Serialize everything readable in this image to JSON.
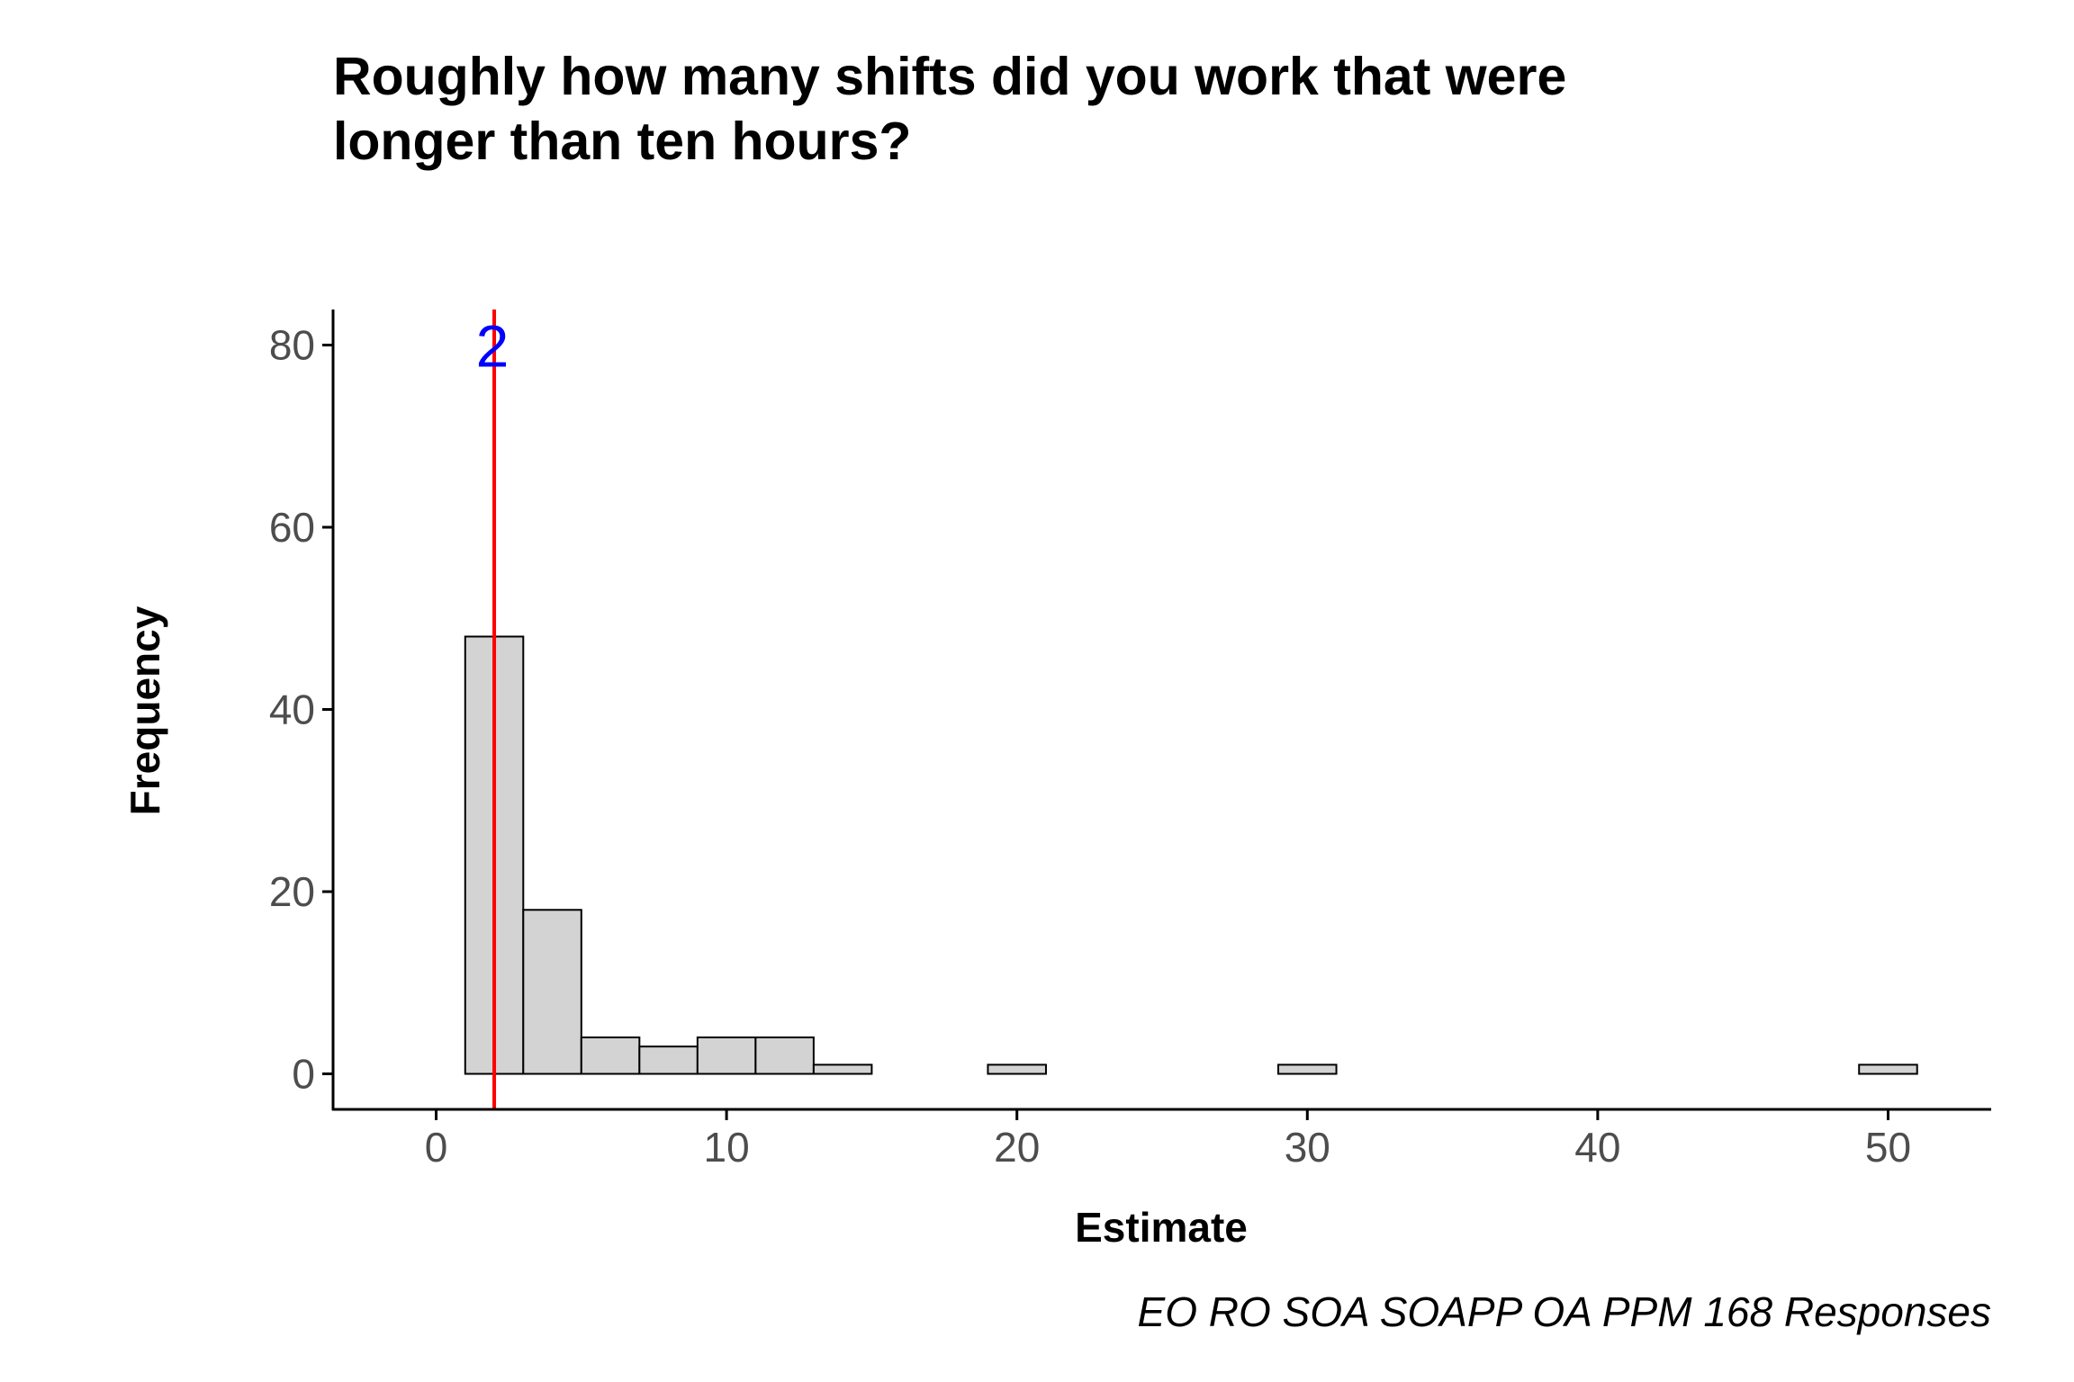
{
  "chart_data": {
    "type": "bar",
    "title_lines": [
      "Roughly how many shifts did you work that were",
      "longer than ten hours?"
    ],
    "xlabel": "Estimate",
    "ylabel": "Frequency",
    "caption": "EO RO SOA SOAPP OA PPM 168 Responses",
    "xlim": [
      -3.55,
      53.55
    ],
    "ylim": [
      -3.9,
      83.9
    ],
    "x_ticks": [
      0,
      10,
      20,
      30,
      40,
      50
    ],
    "y_ticks": [
      0,
      20,
      40,
      60,
      80
    ],
    "bin_width": 2,
    "bins": [
      {
        "x_start": 1,
        "x_end": 3,
        "count": 48
      },
      {
        "x_start": 3,
        "x_end": 5,
        "count": 18
      },
      {
        "x_start": 5,
        "x_end": 7,
        "count": 4
      },
      {
        "x_start": 7,
        "x_end": 9,
        "count": 3
      },
      {
        "x_start": 9,
        "x_end": 11,
        "count": 4
      },
      {
        "x_start": 11,
        "x_end": 13,
        "count": 4
      },
      {
        "x_start": 13,
        "x_end": 15,
        "count": 1
      },
      {
        "x_start": 15,
        "x_end": 17,
        "count": 0
      },
      {
        "x_start": 17,
        "x_end": 19,
        "count": 0
      },
      {
        "x_start": 19,
        "x_end": 21,
        "count": 1
      },
      {
        "x_start": 21,
        "x_end": 23,
        "count": 0
      },
      {
        "x_start": 23,
        "x_end": 25,
        "count": 0
      },
      {
        "x_start": 25,
        "x_end": 27,
        "count": 0
      },
      {
        "x_start": 27,
        "x_end": 29,
        "count": 0
      },
      {
        "x_start": 29,
        "x_end": 31,
        "count": 1
      },
      {
        "x_start": 31,
        "x_end": 33,
        "count": 0
      },
      {
        "x_start": 33,
        "x_end": 35,
        "count": 0
      },
      {
        "x_start": 35,
        "x_end": 37,
        "count": 0
      },
      {
        "x_start": 37,
        "x_end": 39,
        "count": 0
      },
      {
        "x_start": 39,
        "x_end": 41,
        "count": 0
      },
      {
        "x_start": 41,
        "x_end": 43,
        "count": 0
      },
      {
        "x_start": 43,
        "x_end": 45,
        "count": 0
      },
      {
        "x_start": 45,
        "x_end": 47,
        "count": 0
      },
      {
        "x_start": 47,
        "x_end": 49,
        "count": 0
      },
      {
        "x_start": 49,
        "x_end": 51,
        "count": 1
      }
    ],
    "median_line": {
      "x": 2,
      "label": "2"
    },
    "grid": false,
    "legend": "none",
    "colors": {
      "bar_fill": "#d3d3d3",
      "bar_stroke": "#000000",
      "median_line": "#ff0000",
      "median_label": "#0000ff",
      "axis": "#000000",
      "tick_label": "#4d4d4d"
    }
  }
}
